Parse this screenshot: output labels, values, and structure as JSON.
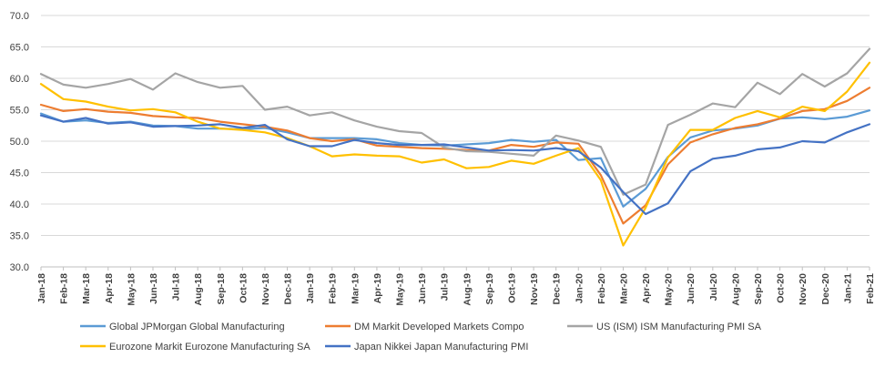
{
  "chart_data": {
    "type": "line",
    "title": "",
    "xlabel": "",
    "ylabel": "",
    "ylim": [
      30,
      70
    ],
    "yticks": [
      "30.0",
      "35.0",
      "40.0",
      "45.0",
      "50.0",
      "55.0",
      "60.0",
      "65.0",
      "70.0"
    ],
    "grid": true,
    "legend": "bottom",
    "x": [
      "Jan-18",
      "Feb-18",
      "Mar-18",
      "Apr-18",
      "May-18",
      "Jun-18",
      "Jul-18",
      "Aug-18",
      "Sep-18",
      "Oct-18",
      "Nov-18",
      "Dec-18",
      "Jan-19",
      "Feb-19",
      "Mar-19",
      "Apr-19",
      "May-19",
      "Jun-19",
      "Jul-19",
      "Aug-19",
      "Sep-19",
      "Oct-19",
      "Nov-19",
      "Dec-19",
      "Jan-20",
      "Feb-20",
      "Mar-20",
      "Apr-20",
      "May-20",
      "Jun-20",
      "Jul-20",
      "Aug-20",
      "Sep-20",
      "Oct-20",
      "Nov-20",
      "Dec-20",
      "Jan-21",
      "Feb-21"
    ],
    "series": [
      {
        "name": "Global JPMorgan Global Manufacturing",
        "color": "#5B9BD5",
        "values": [
          54.4,
          53.1,
          53.3,
          52.9,
          53.1,
          52.5,
          52.4,
          52.0,
          52.0,
          51.9,
          52.1,
          51.4,
          50.5,
          50.5,
          50.5,
          50.3,
          49.7,
          49.4,
          49.3,
          49.5,
          49.7,
          50.2,
          49.9,
          50.2,
          47.0,
          47.3,
          39.6,
          42.4,
          47.5,
          50.6,
          51.7,
          52.0,
          52.5,
          53.6,
          53.8,
          53.5,
          53.9,
          54.9
        ]
      },
      {
        "name": "DM Markit Developed Markets Compo",
        "color": "#ED7D31",
        "values": [
          55.8,
          54.8,
          55.1,
          54.7,
          54.5,
          54.0,
          53.8,
          53.7,
          53.1,
          52.7,
          52.3,
          51.7,
          50.5,
          50.0,
          50.3,
          49.3,
          49.1,
          48.9,
          48.8,
          48.6,
          48.5,
          49.4,
          49.1,
          49.8,
          49.6,
          44.6,
          36.9,
          39.8,
          46.3,
          49.8,
          51.1,
          52.1,
          52.7,
          53.6,
          54.8,
          55.1,
          56.4,
          58.5
        ]
      },
      {
        "name": "US (ISM) ISM Manufacturing PMI SA",
        "color": "#A5A5A5",
        "values": [
          60.7,
          59.0,
          58.5,
          59.1,
          59.9,
          58.2,
          60.8,
          59.4,
          58.5,
          58.8,
          55.0,
          55.5,
          54.1,
          54.6,
          53.3,
          52.3,
          51.6,
          51.3,
          49.0,
          48.4,
          48.3,
          48.0,
          47.7,
          50.9,
          50.1,
          49.1,
          41.5,
          43.1,
          52.6,
          54.2,
          56.0,
          55.4,
          59.3,
          57.5,
          60.7,
          58.7,
          60.8,
          64.7
        ]
      },
      {
        "name": "Eurozone Markit Eurozone Manufacturing SA",
        "color": "#FFC000",
        "values": [
          59.1,
          56.7,
          56.3,
          55.5,
          54.9,
          55.1,
          54.6,
          53.1,
          52.0,
          51.8,
          51.4,
          50.5,
          49.2,
          47.6,
          47.9,
          47.7,
          47.6,
          46.6,
          47.1,
          45.7,
          45.9,
          46.9,
          46.4,
          47.7,
          48.9,
          43.8,
          33.4,
          39.4,
          47.4,
          51.8,
          51.8,
          53.7,
          54.8,
          53.8,
          55.5,
          54.8,
          57.9,
          62.5
        ]
      },
      {
        "name": "Japan Nikkei Japan Manufacturing PMI",
        "color": "#4472C4",
        "values": [
          54.1,
          53.1,
          53.7,
          52.8,
          53.0,
          52.3,
          52.4,
          52.5,
          52.7,
          52.1,
          52.6,
          50.3,
          49.2,
          49.2,
          50.2,
          49.7,
          49.4,
          49.4,
          49.5,
          49.0,
          48.5,
          48.6,
          48.5,
          48.9,
          48.4,
          45.8,
          41.9,
          38.4,
          40.1,
          45.2,
          47.2,
          47.7,
          48.7,
          49.0,
          50.0,
          49.8,
          51.4,
          52.7
        ]
      }
    ]
  }
}
